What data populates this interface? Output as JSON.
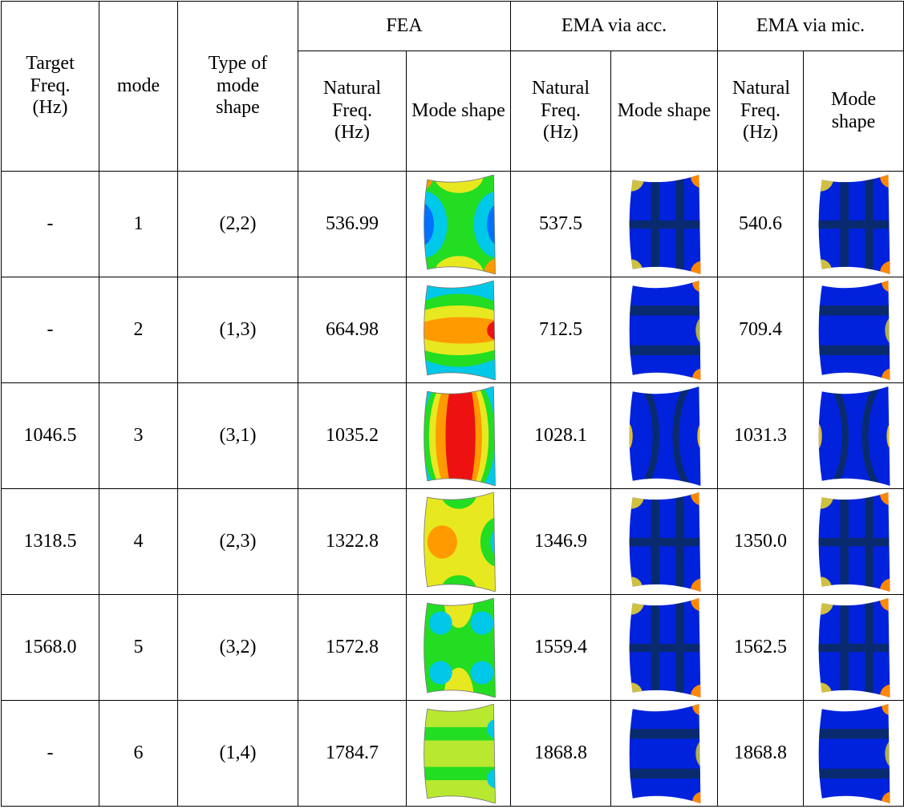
{
  "table": {
    "header": {
      "target_freq": "Target Freq. (Hz)",
      "mode": "mode",
      "type": "Type of mode shape",
      "groups": [
        "FEA",
        "EMA via acc.",
        "EMA via mic."
      ],
      "sub": [
        "Natural Freq. (Hz)",
        "Mode shape",
        "Natural Freq. (Hz)",
        "Mode shape",
        "Natural Freq. (Hz)",
        "Mode shape"
      ]
    },
    "rows": [
      [
        "-",
        "1",
        "(2,2)",
        "536.99",
        "537.5",
        "540.6"
      ],
      [
        "-",
        "2",
        "(1,3)",
        "664.98",
        "712.5",
        "709.4"
      ],
      [
        "1046.5",
        "3",
        "(3,1)",
        "1035.2",
        "1028.1",
        "1031.3"
      ],
      [
        "1318.5",
        "4",
        "(2,3)",
        "1322.8",
        "1346.9",
        "1350.0"
      ],
      [
        "1568.0",
        "5",
        "(3,2)",
        "1572.8",
        "1559.4",
        "1562.5"
      ],
      [
        "-",
        "6",
        "(1,4)",
        "1784.7",
        "1868.8",
        "1868.8"
      ]
    ]
  }
}
